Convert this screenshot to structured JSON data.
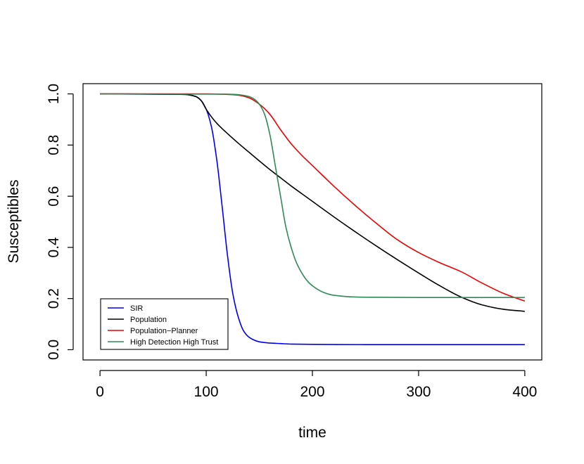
{
  "chart_data": {
    "type": "line",
    "title": "",
    "xlabel": "time",
    "ylabel": "Susceptibles",
    "xlim": [
      -16,
      416
    ],
    "ylim": [
      -0.04,
      1.04
    ],
    "xticks": [
      0,
      100,
      200,
      300,
      400
    ],
    "yticks": [
      0.0,
      0.2,
      0.4,
      0.6,
      0.8,
      1.0
    ],
    "xtick_labels": [
      "0",
      "100",
      "200",
      "300",
      "400"
    ],
    "ytick_labels": [
      "0.0",
      "0.2",
      "0.4",
      "0.6",
      "0.8",
      "1.0"
    ],
    "grid": false,
    "legend_position": "bottom-left",
    "series": [
      {
        "name": "SIR",
        "color": "#0000ee",
        "x": [
          0,
          80,
          90,
          95,
          100,
          105,
          110,
          115,
          120,
          125,
          130,
          135,
          140,
          145,
          150,
          160,
          170,
          180,
          200,
          250,
          300,
          350,
          400
        ],
        "y": [
          1.0,
          0.998,
          0.99,
          0.975,
          0.94,
          0.87,
          0.74,
          0.56,
          0.37,
          0.22,
          0.13,
          0.075,
          0.05,
          0.038,
          0.031,
          0.026,
          0.024,
          0.022,
          0.021,
          0.02,
          0.02,
          0.02,
          0.02
        ]
      },
      {
        "name": "Population",
        "color": "#000000",
        "x": [
          0,
          80,
          90,
          95,
          100,
          105,
          110,
          120,
          130,
          140,
          150,
          160,
          170,
          180,
          190,
          200,
          220,
          240,
          260,
          280,
          300,
          320,
          340,
          360,
          380,
          400
        ],
        "y": [
          1.0,
          0.998,
          0.99,
          0.975,
          0.94,
          0.91,
          0.885,
          0.845,
          0.808,
          0.773,
          0.738,
          0.704,
          0.672,
          0.64,
          0.61,
          0.58,
          0.52,
          0.462,
          0.406,
          0.352,
          0.3,
          0.25,
          0.206,
          0.175,
          0.158,
          0.15
        ]
      },
      {
        "name": "Population−Planner",
        "color": "#ee0000",
        "x": [
          0,
          100,
          120,
          130,
          140,
          150,
          160,
          170,
          180,
          190,
          200,
          220,
          240,
          260,
          280,
          300,
          320,
          340,
          360,
          380,
          400
        ],
        "y": [
          1.0,
          1.0,
          0.998,
          0.995,
          0.985,
          0.96,
          0.92,
          0.86,
          0.805,
          0.76,
          0.72,
          0.64,
          0.565,
          0.495,
          0.43,
          0.38,
          0.34,
          0.305,
          0.26,
          0.22,
          0.19
        ]
      },
      {
        "name": "High Detection High Trust",
        "color": "#2e8b57",
        "x": [
          0,
          120,
          130,
          140,
          145,
          150,
          155,
          160,
          165,
          170,
          175,
          180,
          185,
          190,
          195,
          200,
          210,
          220,
          240,
          260,
          300,
          400
        ],
        "y": [
          1.0,
          0.999,
          0.997,
          0.99,
          0.98,
          0.96,
          0.92,
          0.84,
          0.72,
          0.6,
          0.48,
          0.4,
          0.34,
          0.3,
          0.27,
          0.25,
          0.225,
          0.213,
          0.206,
          0.205,
          0.204,
          0.204
        ]
      }
    ]
  }
}
